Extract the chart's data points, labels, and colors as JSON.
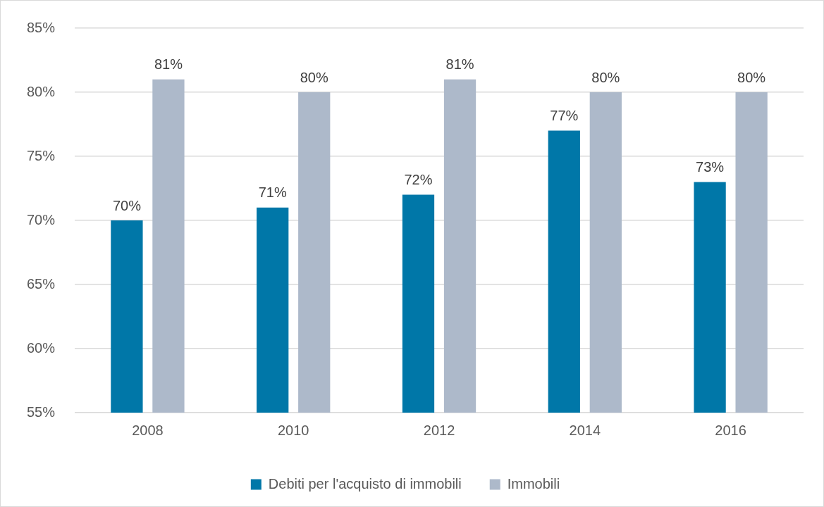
{
  "chart_data": {
    "type": "bar",
    "categories": [
      "2008",
      "2010",
      "2012",
      "2014",
      "2016"
    ],
    "series": [
      {
        "name": "Debiti per l'acquisto di immobili",
        "color": "#0077a8",
        "values": [
          70,
          71,
          72,
          77,
          73
        ],
        "value_labels": [
          "70%",
          "71%",
          "72%",
          "77%",
          "73%"
        ]
      },
      {
        "name": "Immobili",
        "color": "#adb9ca",
        "values": [
          81,
          80,
          81,
          80,
          80
        ],
        "value_labels": [
          "81%",
          "80%",
          "81%",
          "80%",
          "80%"
        ]
      }
    ],
    "ylim": [
      55,
      85
    ],
    "yticks": [
      {
        "value": 55,
        "label": "55%"
      },
      {
        "value": 60,
        "label": "60%"
      },
      {
        "value": 65,
        "label": "65%"
      },
      {
        "value": 70,
        "label": "70%"
      },
      {
        "value": 75,
        "label": "75%"
      },
      {
        "value": 80,
        "label": "80%"
      },
      {
        "value": 85,
        "label": "85%"
      }
    ],
    "grid": "y",
    "legend": "bottom"
  }
}
